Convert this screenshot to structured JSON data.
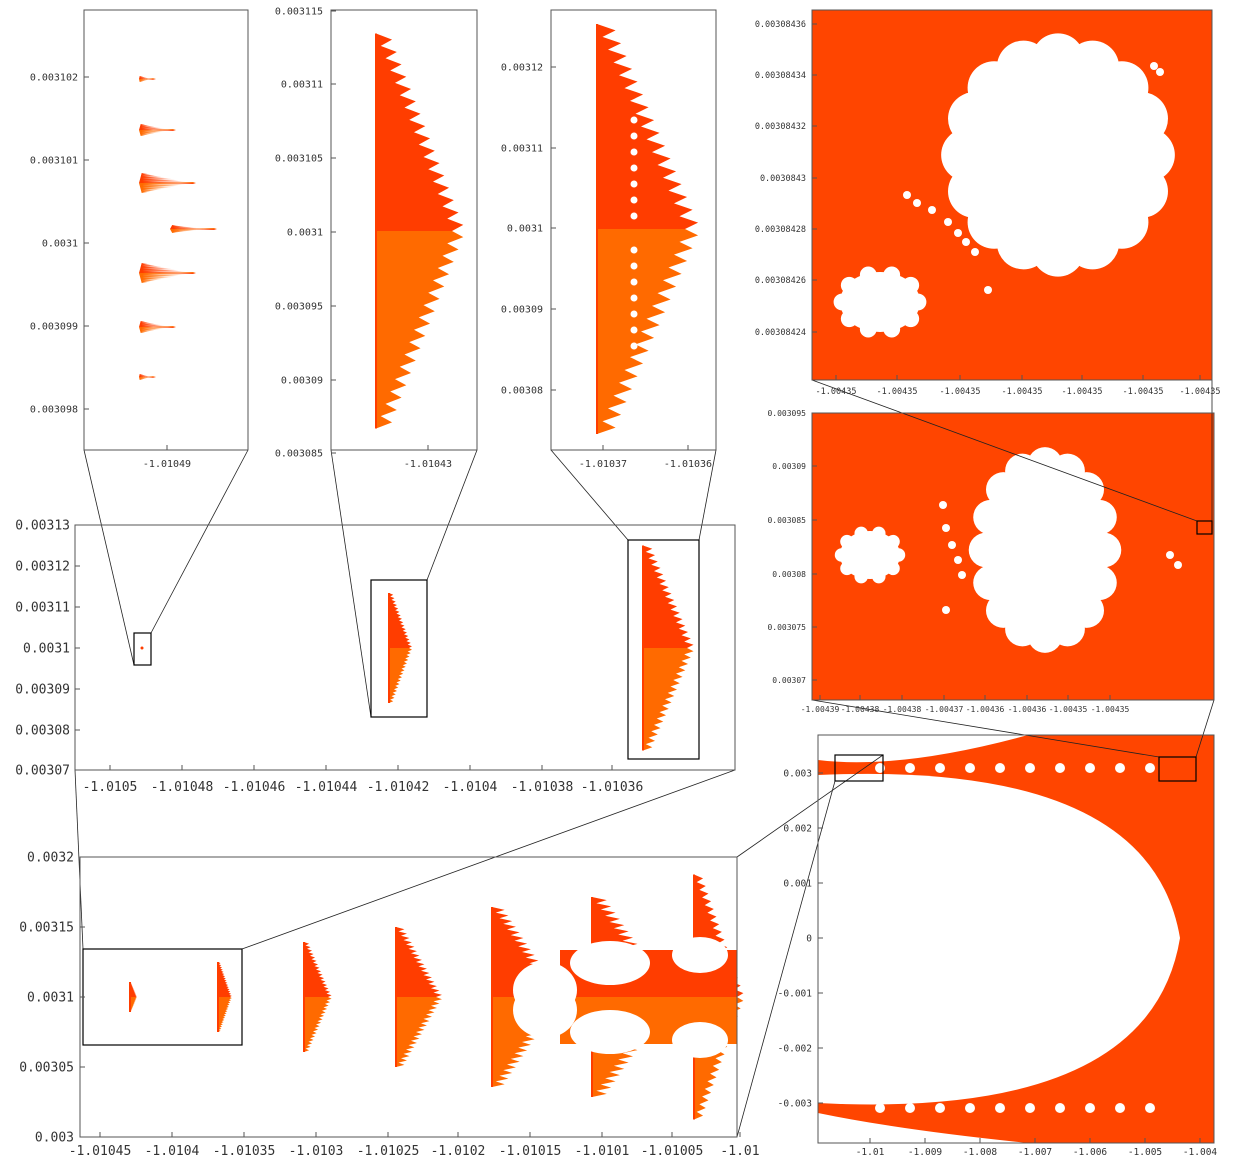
{
  "colors": {
    "orange_dark": "#ff3d00",
    "orange_light": "#ff6a00",
    "orange_bg": "#ff4500",
    "frame": "#000000"
  },
  "chart_data": [
    {
      "id": "main-mid",
      "type": "heatmap",
      "xlim": [
        -1.01051,
        -1.01035
      ],
      "ylim": [
        0.00307,
        0.00313
      ],
      "xticks": [
        "-1.0105",
        "-1.01048",
        "-1.01046",
        "-1.01044",
        "-1.01042",
        "-1.0104",
        "-1.01038",
        "-1.01036"
      ],
      "yticks": [
        "0.00313",
        "0.00312",
        "0.00311",
        "0.0031",
        "0.00309",
        "0.00308",
        "0.00307"
      ]
    },
    {
      "id": "inset-1",
      "type": "heatmap",
      "xticks": [
        "-1.01049"
      ],
      "yticks": [
        "0.003102",
        "0.003101",
        "0.0031",
        "0.003099",
        "0.003098"
      ]
    },
    {
      "id": "inset-2",
      "type": "heatmap",
      "xticks": [
        "-1.01043"
      ],
      "yticks": [
        "0.003115",
        "0.00311",
        "0.003105",
        "0.0031",
        "0.003095",
        "0.00309",
        "0.003085"
      ]
    },
    {
      "id": "inset-3",
      "type": "heatmap",
      "xticks": [
        "-1.01037",
        "-1.01036"
      ],
      "yticks": [
        "0.00312",
        "0.00311",
        "0.0031",
        "0.00309",
        "0.00308"
      ]
    },
    {
      "id": "bottom-left",
      "type": "heatmap",
      "xlim": [
        -1.01047,
        -1.01
      ],
      "ylim": [
        0.003,
        0.0032
      ],
      "xticks": [
        "-1.01045",
        "-1.0104",
        "-1.01035",
        "-1.0103",
        "-1.01025",
        "-1.0102",
        "-1.01015",
        "-1.0101",
        "-1.01005",
        "-1.01"
      ],
      "yticks": [
        "0.0032",
        "0.00315",
        "0.0031",
        "0.00305",
        "0.003"
      ]
    },
    {
      "id": "right-top",
      "type": "heatmap",
      "xticks": [
        "-1.00435",
        "-1.00435",
        "-1.00435",
        "-1.00435",
        "-1.00435",
        "-1.00435",
        "-1.00435"
      ],
      "yticks": [
        "0.00308436",
        "0.00308434",
        "0.00308432",
        "0.0030843",
        "0.00308428",
        "0.00308426",
        "0.00308424"
      ]
    },
    {
      "id": "right-mid",
      "type": "heatmap",
      "xticks": [
        "-1.00439",
        "-1.00438",
        "-1.00438",
        "-1.00437",
        "-1.00436",
        "-1.00436",
        "-1.00435",
        "-1.00435"
      ],
      "yticks": [
        "0.003095",
        "0.00309",
        "0.003085",
        "0.00308",
        "0.003075",
        "0.00307"
      ]
    },
    {
      "id": "right-bottom",
      "type": "heatmap",
      "xticks": [
        "-1.01",
        "-1.009",
        "-1.008",
        "-1.007",
        "-1.006",
        "-1.005",
        "-1.004"
      ],
      "yticks": [
        "0.003",
        "0.002",
        "0.001",
        "0",
        "-0.001",
        "-0.002",
        "-0.003"
      ]
    }
  ]
}
